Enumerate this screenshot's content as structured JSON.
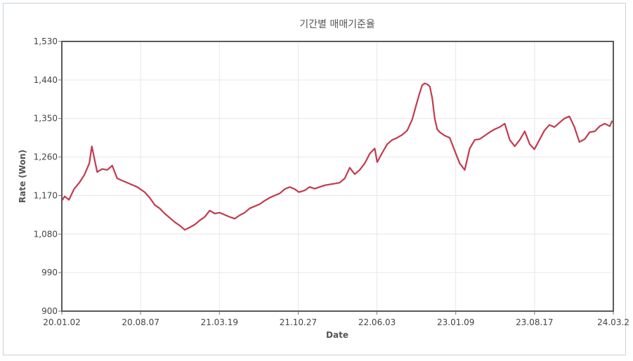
{
  "chart_data": {
    "type": "line",
    "title": "기간별 매매기준율",
    "xlabel": "Date",
    "ylabel": "Rate (Won)",
    "ylim": [
      900,
      1530
    ],
    "yticks": [
      "900",
      "990",
      "1,080",
      "1,170",
      "1,260",
      "1,350",
      "1,440",
      "1,530"
    ],
    "xticks": [
      "20.01.02",
      "20.08.07",
      "21.03.19",
      "21.10.27",
      "22.06.03",
      "23.01.09",
      "23.08.17",
      "24.03.2"
    ],
    "grid": true,
    "line_color": "#c23b4e",
    "series": [
      {
        "x": [
          "2020-01-02",
          "2020-01-10",
          "2020-01-22",
          "2020-02-05",
          "2020-02-20",
          "2020-03-05",
          "2020-03-19",
          "2020-03-26",
          "2020-04-10",
          "2020-04-24",
          "2020-05-08",
          "2020-05-22",
          "2020-06-05",
          "2020-06-19",
          "2020-07-03",
          "2020-07-17",
          "2020-07-31",
          "2020-08-07",
          "2020-08-21",
          "2020-09-04",
          "2020-09-18",
          "2020-10-02",
          "2020-10-16",
          "2020-10-30",
          "2020-11-13",
          "2020-11-27",
          "2020-12-11",
          "2020-12-24",
          "2021-01-08",
          "2021-01-22",
          "2021-02-05",
          "2021-02-19",
          "2021-03-05",
          "2021-03-19",
          "2021-04-02",
          "2021-04-16",
          "2021-04-30",
          "2021-05-14",
          "2021-05-28",
          "2021-06-11",
          "2021-06-25",
          "2021-07-09",
          "2021-07-23",
          "2021-08-06",
          "2021-08-20",
          "2021-09-03",
          "2021-09-17",
          "2021-10-01",
          "2021-10-15",
          "2021-10-27",
          "2021-11-12",
          "2021-11-26",
          "2021-12-10",
          "2021-12-24",
          "2022-01-07",
          "2022-01-21",
          "2022-02-04",
          "2022-02-18",
          "2022-03-04",
          "2022-03-18",
          "2022-04-01",
          "2022-04-15",
          "2022-04-29",
          "2022-05-13",
          "2022-05-27",
          "2022-06-03",
          "2022-06-17",
          "2022-07-01",
          "2022-07-15",
          "2022-07-29",
          "2022-08-12",
          "2022-08-26",
          "2022-09-09",
          "2022-09-23",
          "2022-09-30",
          "2022-10-07",
          "2022-10-14",
          "2022-10-21",
          "2022-10-28",
          "2022-11-04",
          "2022-11-11",
          "2022-11-18",
          "2022-11-25",
          "2022-12-09",
          "2022-12-23",
          "2023-01-09",
          "2023-01-20",
          "2023-02-03",
          "2023-02-17",
          "2023-03-03",
          "2023-03-17",
          "2023-03-31",
          "2023-04-14",
          "2023-04-28",
          "2023-05-12",
          "2023-05-26",
          "2023-06-09",
          "2023-06-23",
          "2023-07-07",
          "2023-07-21",
          "2023-08-04",
          "2023-08-17",
          "2023-08-31",
          "2023-09-14",
          "2023-09-28",
          "2023-10-12",
          "2023-10-26",
          "2023-11-09",
          "2023-11-23",
          "2023-12-07",
          "2023-12-21",
          "2024-01-05",
          "2024-01-19",
          "2024-02-02",
          "2024-02-16",
          "2024-03-01",
          "2024-03-15",
          "2024-03-22"
        ],
        "y": [
          1158,
          1168,
          1160,
          1185,
          1200,
          1218,
          1245,
          1285,
          1225,
          1232,
          1230,
          1240,
          1210,
          1205,
          1200,
          1195,
          1190,
          1186,
          1178,
          1165,
          1148,
          1140,
          1128,
          1118,
          1108,
          1100,
          1090,
          1095,
          1102,
          1112,
          1120,
          1135,
          1128,
          1130,
          1125,
          1120,
          1116,
          1124,
          1130,
          1140,
          1145,
          1150,
          1158,
          1165,
          1170,
          1175,
          1185,
          1190,
          1185,
          1178,
          1182,
          1190,
          1186,
          1190,
          1194,
          1196,
          1198,
          1200,
          1210,
          1235,
          1220,
          1230,
          1245,
          1268,
          1280,
          1248,
          1270,
          1290,
          1300,
          1305,
          1312,
          1322,
          1348,
          1390,
          1410,
          1428,
          1432,
          1430,
          1425,
          1398,
          1350,
          1325,
          1318,
          1310,
          1305,
          1268,
          1245,
          1230,
          1280,
          1300,
          1302,
          1310,
          1318,
          1325,
          1330,
          1338,
          1300,
          1285,
          1300,
          1320,
          1290,
          1278,
          1300,
          1322,
          1335,
          1330,
          1340,
          1350,
          1355,
          1330,
          1295,
          1302,
          1318,
          1320,
          1332,
          1338,
          1332,
          1345
        ]
      }
    ]
  }
}
